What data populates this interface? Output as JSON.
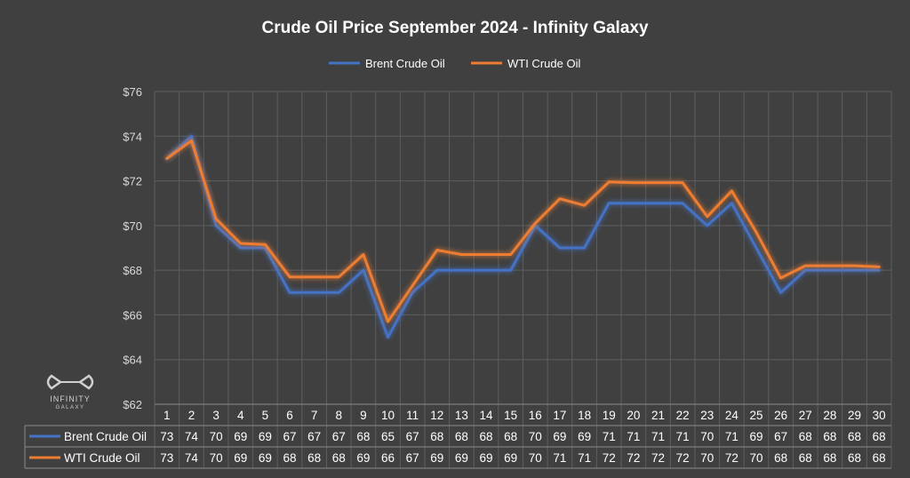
{
  "chart_data": {
    "type": "line",
    "title": "Crude Oil Price September 2024 - Infinity Galaxy",
    "categories": [
      "1",
      "2",
      "3",
      "4",
      "5",
      "6",
      "7",
      "8",
      "9",
      "10",
      "11",
      "12",
      "13",
      "14",
      "15",
      "16",
      "17",
      "18",
      "19",
      "20",
      "21",
      "22",
      "23",
      "24",
      "25",
      "26",
      "27",
      "28",
      "29",
      "30"
    ],
    "series": [
      {
        "name": "Brent Crude Oil",
        "color": "#4472c4",
        "values": [
          73,
          74,
          70,
          69,
          69,
          67,
          67,
          67,
          68,
          65,
          67,
          68,
          68,
          68,
          68,
          70,
          69,
          69,
          71,
          71,
          71,
          71,
          70,
          71,
          69,
          67,
          68,
          68,
          68,
          68
        ],
        "table_values": [
          "73",
          "74",
          "70",
          "69",
          "69",
          "67",
          "67",
          "67",
          "68",
          "65",
          "67",
          "68",
          "68",
          "68",
          "68",
          "70",
          "69",
          "69",
          "71",
          "71",
          "71",
          "71",
          "70",
          "71",
          "69",
          "67",
          "68",
          "68",
          "68",
          "68"
        ]
      },
      {
        "name": "WTI Crude Oil",
        "color": "#ed7d31",
        "values": [
          73,
          73.8,
          70.3,
          69.2,
          69.15,
          67.7,
          67.7,
          67.7,
          68.7,
          65.7,
          67.3,
          68.9,
          68.7,
          68.7,
          68.7,
          70.1,
          71.2,
          70.9,
          71.95,
          71.92,
          71.92,
          71.92,
          70.4,
          71.55,
          69.7,
          67.65,
          68.2,
          68.2,
          68.2,
          68.15
        ],
        "table_values": [
          "73",
          "74",
          "70",
          "69",
          "69",
          "68",
          "68",
          "68",
          "69",
          "66",
          "67",
          "69",
          "69",
          "69",
          "69",
          "70",
          "71",
          "71",
          "72",
          "72",
          "72",
          "72",
          "70",
          "72",
          "70",
          "68",
          "68",
          "68",
          "68",
          "68"
        ]
      }
    ],
    "ylim": [
      62,
      76
    ],
    "ytick_labels": [
      "$62",
      "$64",
      "$66",
      "$68",
      "$70",
      "$72",
      "$74",
      "$76"
    ],
    "grid": true,
    "legend_position": "top",
    "data_table": true
  },
  "logo": {
    "name": "INFINITY",
    "sub": "GALAXY"
  }
}
